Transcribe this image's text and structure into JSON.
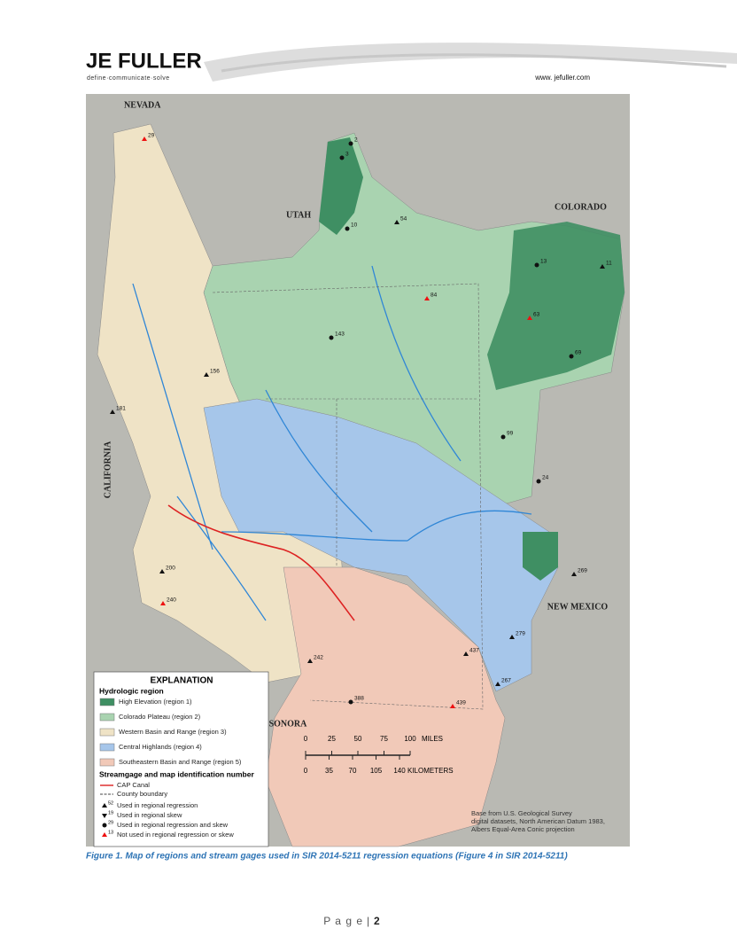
{
  "header": {
    "logo": "JE FULLER",
    "tagline": "define·communicate·solve",
    "website": "www. jefuller.com"
  },
  "map": {
    "state_labels": [
      "NEVADA",
      "UTAH",
      "COLORADO",
      "CALIFORNIA",
      "NEW MEXICO",
      "SONORA"
    ],
    "legend": {
      "title": "EXPLANATION",
      "region_heading": "Hydrologic region",
      "regions": [
        "High Elevation (region 1)",
        "Colorado Plateau (region 2)",
        "Western Basin and Range (region 3)",
        "Central Highlands (region 4)",
        "Southeastern Basin and Range (region 5)"
      ],
      "gage_heading": "Streamgage and map identification number",
      "lines": [
        "CAP Canal",
        "County boundary"
      ],
      "symbols": [
        {
          "id": "52",
          "label": "Used in regional regression"
        },
        {
          "id": "19",
          "label": "Used in regional skew"
        },
        {
          "id": "29",
          "label": "Used in regional regression and skew"
        },
        {
          "id": "13",
          "label": "Not used in regional regression or skew"
        }
      ]
    },
    "scale": {
      "miles": [
        "0",
        "25",
        "50",
        "75",
        "100"
      ],
      "miles_unit": "MILES",
      "km": [
        "0",
        "35",
        "70",
        "105",
        "140"
      ],
      "km_unit": "KILOMETERS"
    },
    "source_note": [
      "Base from U.S. Geological Survey",
      "digital datasets, North American Datum 1983,",
      "Albers Equal-Area Conic projection"
    ],
    "gages": [
      "29",
      "2",
      "3",
      "54",
      "10",
      "13",
      "11",
      "63",
      "69",
      "99",
      "24",
      "143",
      "156",
      "181",
      "200",
      "240",
      "267",
      "279",
      "437",
      "439",
      "388",
      "242",
      "269",
      "84"
    ]
  },
  "caption": "Figure 1. Map of regions and stream gages used in SIR 2014-5211 regression equations (Figure 4 in SIR 2014-5211)",
  "footer": {
    "page_label": "P a g e",
    "page_number": "2"
  }
}
